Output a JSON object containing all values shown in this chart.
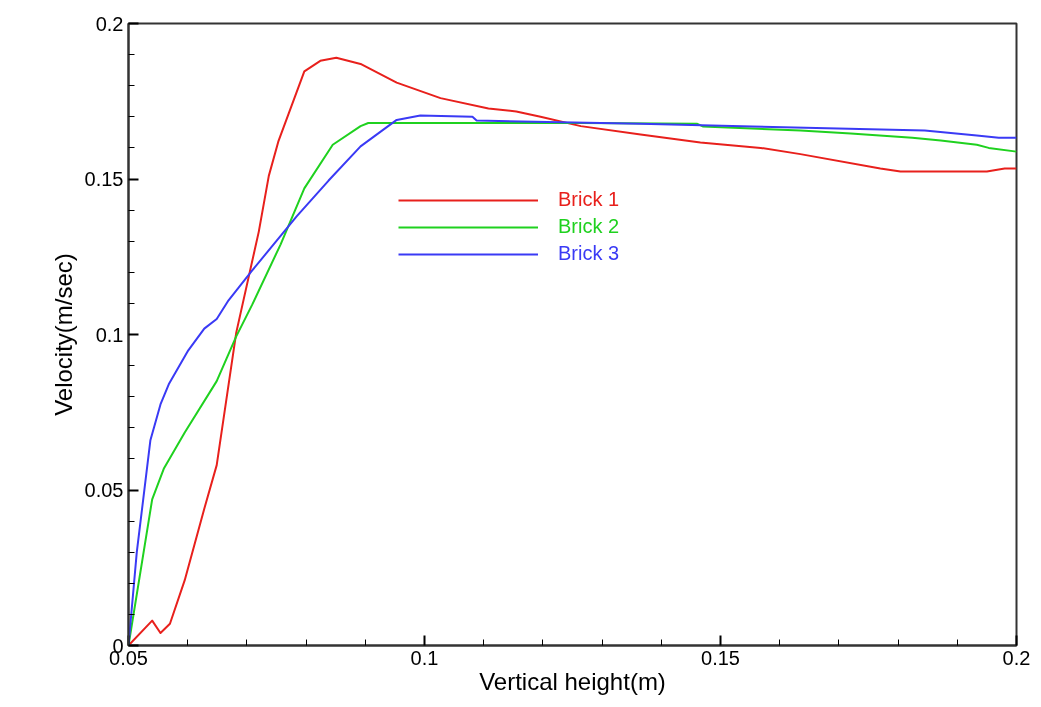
{
  "chart_data": {
    "type": "line",
    "xlabel": "Vertical height(m)",
    "ylabel": "Velocity(m/sec)",
    "xlim": [
      0.05,
      0.2
    ],
    "ylim": [
      0,
      0.2
    ],
    "xticks": [
      0.05,
      {
        "value": 0.06,
        "label": null
      },
      {
        "value": 0.07,
        "label": null
      },
      {
        "value": 0.08,
        "label": null
      },
      {
        "value": 0.09,
        "label": null
      },
      0.1,
      {
        "value": 0.11,
        "label": null
      },
      {
        "value": 0.12,
        "label": null
      },
      {
        "value": 0.13,
        "label": null
      },
      {
        "value": 0.14,
        "label": null
      },
      0.15,
      {
        "value": 0.16,
        "label": null
      },
      {
        "value": 0.17,
        "label": null
      },
      {
        "value": 0.18,
        "label": null
      },
      {
        "value": 0.19,
        "label": null
      },
      0.2
    ],
    "yticks": [
      0,
      {
        "value": 0.01,
        "label": null
      },
      {
        "value": 0.02,
        "label": null
      },
      {
        "value": 0.03,
        "label": null
      },
      {
        "value": 0.04,
        "label": null
      },
      0.05,
      {
        "value": 0.06,
        "label": null
      },
      {
        "value": 0.07,
        "label": null
      },
      {
        "value": 0.08,
        "label": null
      },
      {
        "value": 0.09,
        "label": null
      },
      0.1,
      {
        "value": 0.11,
        "label": null
      },
      {
        "value": 0.12,
        "label": null
      },
      {
        "value": 0.13,
        "label": null
      },
      {
        "value": 0.14,
        "label": null
      },
      0.15,
      {
        "value": 0.16,
        "label": null
      },
      {
        "value": 0.17,
        "label": null
      },
      {
        "value": 0.18,
        "label": null
      },
      {
        "value": 0.19,
        "label": null
      },
      0.2
    ],
    "grid": false,
    "legend": "top",
    "marker": "none",
    "line_style": "solid",
    "series": [
      {
        "name": "Brick 1",
        "color": "#e8201c",
        "x": [
          0.05,
          0.054,
          0.0554,
          0.057,
          0.0595,
          0.0628,
          0.0649,
          0.0682,
          0.072,
          0.0737,
          0.0753,
          0.0797,
          0.0824,
          0.0851,
          0.0892,
          0.0953,
          0.1027,
          0.1108,
          0.1155,
          0.1196,
          0.1264,
          0.1365,
          0.1466,
          0.1568,
          0.1635,
          0.177,
          0.1804,
          0.195,
          0.198,
          0.2
        ],
        "values": [
          0,
          0.008,
          0.004,
          0.007,
          0.021,
          0.044,
          0.058,
          0.1006,
          0.133,
          0.151,
          0.162,
          0.1846,
          0.188,
          0.189,
          0.187,
          0.181,
          0.176,
          0.1727,
          0.1717,
          0.17,
          0.167,
          0.1643,
          0.1617,
          0.16,
          0.158,
          0.1534,
          0.1524,
          0.1524,
          0.1534,
          0.1534
        ]
      },
      {
        "name": "Brick 2",
        "color": "#1fd11f",
        "x": [
          0.05,
          0.054,
          0.056,
          0.0595,
          0.0649,
          0.0682,
          0.0709,
          0.0757,
          0.0797,
          0.0845,
          0.0892,
          0.0905,
          0.1264,
          0.146,
          0.147,
          0.1635,
          0.172,
          0.1824,
          0.1872,
          0.1933,
          0.1953,
          0.2
        ],
        "values": [
          0,
          0.047,
          0.057,
          0.0685,
          0.085,
          0.0994,
          0.1096,
          0.129,
          0.147,
          0.161,
          0.167,
          0.168,
          0.168,
          0.1678,
          0.1669,
          0.1656,
          0.1646,
          0.1633,
          0.1624,
          0.161,
          0.16,
          0.1588
        ]
      },
      {
        "name": "Brick 3",
        "color": "#3a3af5",
        "x": [
          0.05,
          0.0514,
          0.0537,
          0.0554,
          0.0568,
          0.0601,
          0.0628,
          0.0649,
          0.0669,
          0.0709,
          0.0784,
          0.0838,
          0.0892,
          0.0953,
          0.0993,
          0.1081,
          0.1088,
          0.1365,
          0.1554,
          0.1845,
          0.1933,
          0.197,
          0.2
        ],
        "values": [
          0,
          0.03,
          0.066,
          0.0775,
          0.084,
          0.0949,
          0.1019,
          0.105,
          0.111,
          0.1206,
          0.138,
          0.1495,
          0.1605,
          0.169,
          0.1704,
          0.17,
          0.1688,
          0.1678,
          0.1669,
          0.1656,
          0.164,
          0.1633,
          0.1633
        ]
      }
    ]
  }
}
